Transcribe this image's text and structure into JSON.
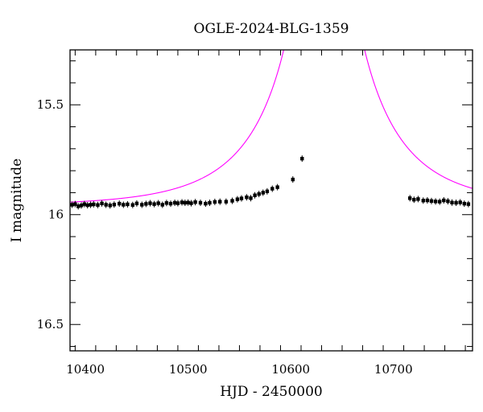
{
  "chart_data": {
    "type": "scatter",
    "title": "OGLE-2024-BLG-1359",
    "xlabel": "HJD - 2450000",
    "ylabel": "I magnitude",
    "xlim": [
      10385,
      10777
    ],
    "ylim": [
      16.62,
      15.25
    ],
    "y_inverted": true,
    "x_ticks_major": [
      10400,
      10500,
      10600,
      10700
    ],
    "x_tick_labels": [
      "10400",
      "10500",
      "10600",
      "10700"
    ],
    "y_ticks_major": [
      15.5,
      16,
      16.5
    ],
    "y_tick_labels": [
      "15.5",
      "16",
      "16.5"
    ],
    "colors": {
      "model": "#ff00ff",
      "points": "#000000",
      "axes": "#000000"
    },
    "model": {
      "name": "microlensing model",
      "t0": 10632.5,
      "u0": 0.0,
      "tE": 95,
      "baseline_mag": 15.96,
      "blend_fraction": 0.59
    },
    "series": [
      {
        "name": "OGLE data",
        "x": [
          10387,
          10390,
          10393,
          10396,
          10399,
          10402,
          10405,
          10408,
          10412,
          10416,
          10420,
          10424,
          10428,
          10433,
          10437,
          10441,
          10446,
          10450,
          10455,
          10459,
          10463,
          10467,
          10471,
          10475,
          10479,
          10483,
          10487,
          10490,
          10494,
          10497,
          10500,
          10503,
          10507,
          10512,
          10517,
          10521,
          10526,
          10531,
          10537,
          10543,
          10548,
          10552,
          10557,
          10561,
          10565,
          10569,
          10573,
          10577,
          10582,
          10587,
          10602,
          10611,
          10716,
          10720,
          10724,
          10729,
          10733,
          10737,
          10741,
          10745,
          10749,
          10753,
          10757,
          10761,
          10765,
          10769,
          10773
        ],
        "y": [
          15.955,
          15.952,
          15.962,
          15.958,
          15.952,
          15.957,
          15.955,
          15.953,
          15.956,
          15.949,
          15.955,
          15.958,
          15.954,
          15.95,
          15.955,
          15.953,
          15.956,
          15.949,
          15.955,
          15.951,
          15.948,
          15.952,
          15.948,
          15.955,
          15.947,
          15.95,
          15.946,
          15.948,
          15.944,
          15.946,
          15.945,
          15.948,
          15.943,
          15.946,
          15.95,
          15.946,
          15.942,
          15.941,
          15.941,
          15.937,
          15.93,
          15.926,
          15.921,
          15.925,
          15.912,
          15.906,
          15.9,
          15.894,
          15.882,
          15.875,
          15.84,
          15.745,
          15.925,
          15.932,
          15.929,
          15.936,
          15.935,
          15.938,
          15.94,
          15.941,
          15.935,
          15.939,
          15.945,
          15.946,
          15.944,
          15.95,
          15.952
        ]
      }
    ]
  }
}
